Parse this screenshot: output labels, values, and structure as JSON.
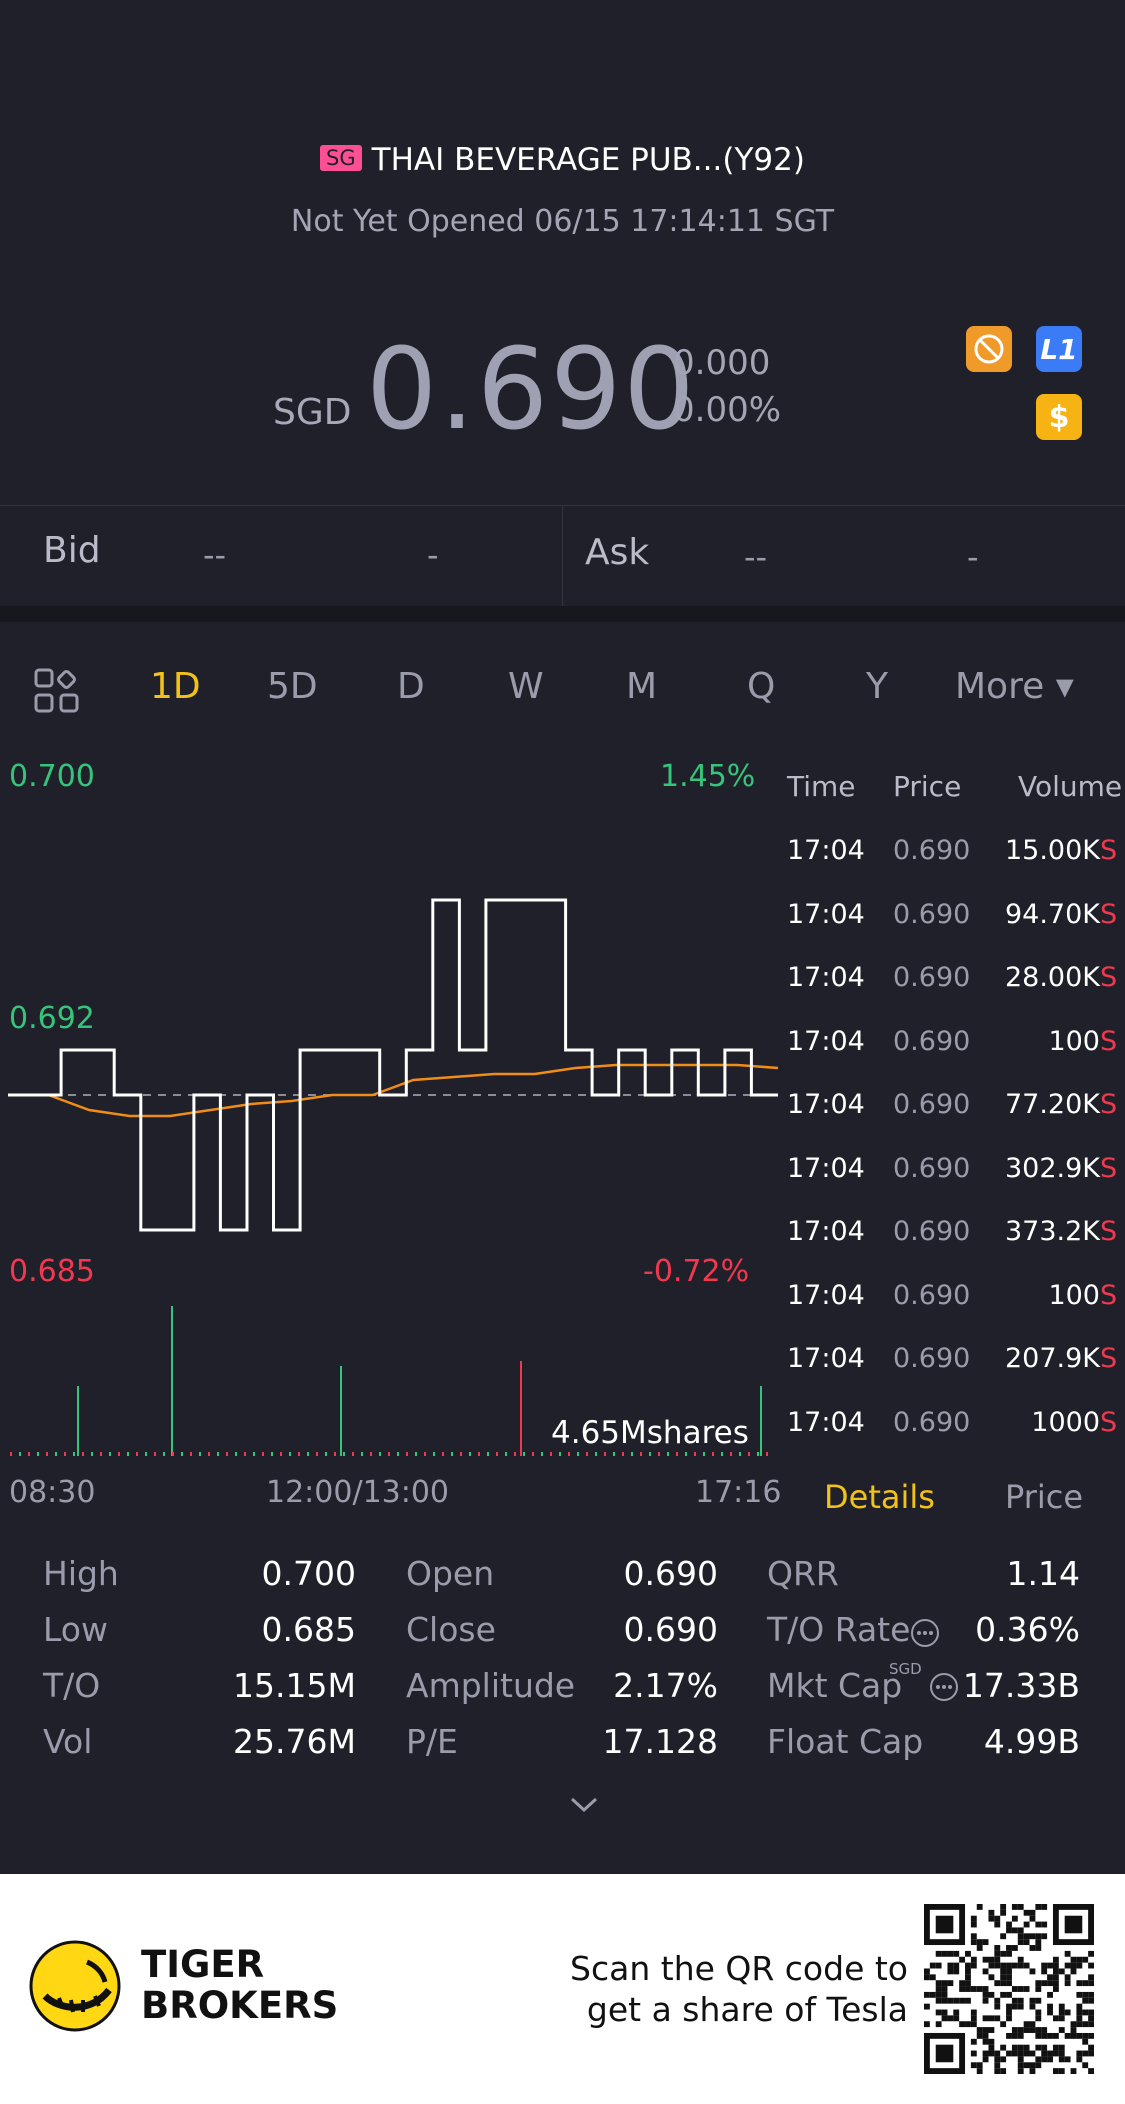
{
  "header": {
    "market_badge": "SG",
    "stock_title": "THAI BEVERAGE PUB...(Y92)",
    "status": "Not Yet Opened 06/15 17:14:11 SGT",
    "currency": "SGD",
    "price": "0.690",
    "change": "0.000",
    "change_pct": "0.00%",
    "l1_icon_label": "L1",
    "dollar_icon_label": "$"
  },
  "bid_ask": {
    "bid_label": "Bid",
    "bid_price": "--",
    "bid_size": "-",
    "ask_label": "Ask",
    "ask_price": "--",
    "ask_size": "-"
  },
  "tabs": {
    "items": [
      "1D",
      "5D",
      "D",
      "W",
      "M",
      "Q",
      "Y"
    ],
    "active": "1D",
    "more_label": "More ▾"
  },
  "chart": {
    "y_high": "0.700",
    "y_mid": "0.692",
    "y_low": "0.685",
    "pct_high": "1.45%",
    "pct_low": "-0.72%",
    "volume_label": "4.65Mshares",
    "x_start": "08:30",
    "x_mid": "12:00/13:00",
    "x_end": "17:16",
    "colors": {
      "price_line": "#ffffff",
      "avg_line": "#f08c18",
      "up": "#36c47a",
      "down": "#f0394f"
    }
  },
  "chart_data": {
    "type": "line",
    "series": [
      {
        "values": [
          0.69,
          0.69,
          0.6915,
          0.6915,
          0.69,
          0.6855,
          0.6855,
          0.69,
          0.6855,
          0.69,
          0.6855,
          0.6915,
          0.6915,
          0.6915,
          0.69,
          0.6915,
          0.6965,
          0.6915,
          0.6965,
          0.6965,
          0.6965,
          0.6915,
          0.69,
          0.6915,
          0.69,
          0.6915,
          0.69,
          0.6915,
          0.69
        ]
      },
      {
        "values": [
          0.69,
          0.69,
          0.6895,
          0.6893,
          0.6893,
          0.6895,
          0.6897,
          0.6898,
          0.69,
          0.69,
          0.6905,
          0.6906,
          0.6907,
          0.6907,
          0.6909,
          0.691,
          0.691,
          0.691,
          0.691,
          0.6909
        ]
      }
    ],
    "ylim": [
      0.685,
      0.7
    ]
  },
  "ticks": {
    "headers": [
      "Time",
      "Price",
      "Volume"
    ],
    "rows": [
      {
        "time": "17:04",
        "price": "0.690",
        "volume": "15.00K",
        "side": "S"
      },
      {
        "time": "17:04",
        "price": "0.690",
        "volume": "94.70K",
        "side": "S"
      },
      {
        "time": "17:04",
        "price": "0.690",
        "volume": "28.00K",
        "side": "S"
      },
      {
        "time": "17:04",
        "price": "0.690",
        "volume": "100",
        "side": "S"
      },
      {
        "time": "17:04",
        "price": "0.690",
        "volume": "77.20K",
        "side": "S"
      },
      {
        "time": "17:04",
        "price": "0.690",
        "volume": "302.9K",
        "side": "S"
      },
      {
        "time": "17:04",
        "price": "0.690",
        "volume": "373.2K",
        "side": "S"
      },
      {
        "time": "17:04",
        "price": "0.690",
        "volume": "100",
        "side": "S"
      },
      {
        "time": "17:04",
        "price": "0.690",
        "volume": "207.9K",
        "side": "S"
      },
      {
        "time": "17:04",
        "price": "0.690",
        "volume": "1000",
        "side": "S"
      }
    ],
    "details_tab": "Details",
    "price_tab": "Price"
  },
  "stats": {
    "col1": [
      {
        "label": "High",
        "value": "0.700"
      },
      {
        "label": "Low",
        "value": "0.685"
      },
      {
        "label": "T/O",
        "value": "15.15M"
      },
      {
        "label": "Vol",
        "value": "25.76M"
      }
    ],
    "col2": [
      {
        "label": "Open",
        "value": "0.690"
      },
      {
        "label": "Close",
        "value": "0.690"
      },
      {
        "label": "Amplitude",
        "value": "2.17%"
      },
      {
        "label": "P/E",
        "value": "17.128"
      }
    ],
    "col3": [
      {
        "label": "QRR",
        "value": "1.14"
      },
      {
        "label": "T/O Rate",
        "value": "0.36%"
      },
      {
        "label": "Mkt Cap",
        "value": "17.33B",
        "superscript": "SGD"
      },
      {
        "label": "Float Cap",
        "value": "4.99B"
      }
    ]
  },
  "footer": {
    "brand_line1": "TIGER",
    "brand_line2": "BROKERS",
    "promo_line1": "Scan the QR code to",
    "promo_line2": "get a share of Tesla"
  }
}
